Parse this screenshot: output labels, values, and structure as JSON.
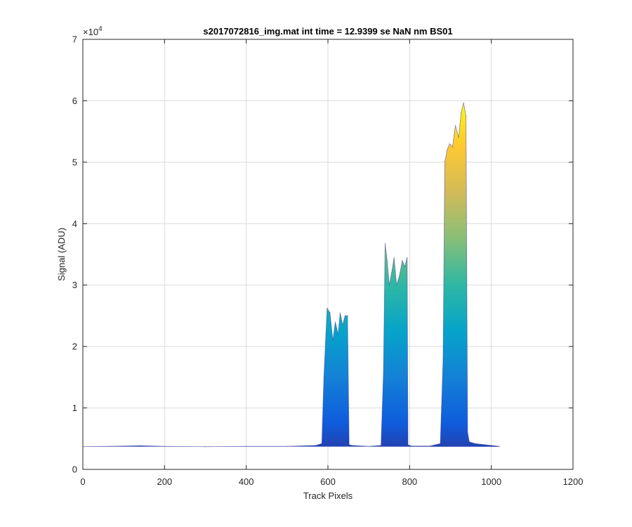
{
  "chart_data": {
    "type": "area",
    "title": "s2017072816_img.mat int time = 12.9399 se  NaN nm BS01",
    "xlabel": "Track Pixels",
    "ylabel": "Signal (ADU)",
    "xlim": [
      0,
      1200
    ],
    "ylim": [
      0,
      70000
    ],
    "x_ticks": [
      0,
      200,
      400,
      600,
      800,
      1000,
      1200
    ],
    "y_ticks": [
      0,
      1,
      2,
      3,
      4,
      5,
      6,
      7
    ],
    "y_tick_labels": [
      "0",
      "1",
      "2",
      "3",
      "4",
      "5",
      "6",
      "7"
    ],
    "y_exponent_label": "×10",
    "y_exponent_power": "4",
    "grid": true,
    "colormap": "parula",
    "colormap_stops": [
      "#352a87",
      "#0f5cdd",
      "#1481d6",
      "#06a4ca",
      "#2eb7a4",
      "#87bf77",
      "#d1bb59",
      "#fec832",
      "#f9fb0e"
    ],
    "baseline": 3700,
    "series": [
      {
        "x": [
          0,
          100,
          140,
          200,
          300,
          400,
          500,
          570,
          585,
          590,
          598,
          605,
          612,
          618,
          625,
          630,
          636,
          642,
          648,
          652,
          660,
          700,
          730,
          736,
          740,
          745,
          750,
          756,
          762,
          768,
          775,
          782,
          788,
          794,
          796,
          805,
          850,
          875,
          882,
          886,
          892,
          898,
          905,
          912,
          920,
          926,
          932,
          938,
          942,
          946,
          960,
          1000,
          1020
        ],
        "y": [
          3700,
          3800,
          3850,
          3750,
          3700,
          3750,
          3750,
          3900,
          4200,
          15000,
          26200,
          25500,
          21000,
          24000,
          22000,
          25500,
          23500,
          25000,
          25000,
          4000,
          3900,
          3750,
          3900,
          16000,
          36800,
          34000,
          30000,
          32000,
          34500,
          30000,
          31500,
          34000,
          33000,
          34500,
          4000,
          3800,
          3800,
          4200,
          18000,
          50000,
          52000,
          53000,
          52500,
          56000,
          54000,
          58000,
          59700,
          57500,
          6000,
          4500,
          4200,
          3900,
          3750
        ]
      }
    ]
  }
}
